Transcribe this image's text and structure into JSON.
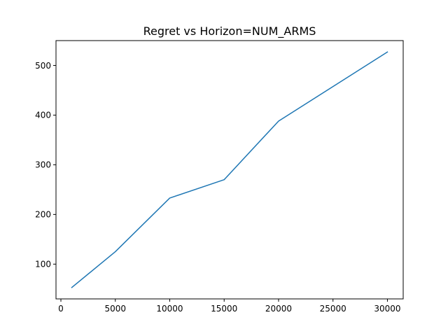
{
  "chart_data": {
    "type": "line",
    "title": "Regret vs Horizon=NUM_ARMS",
    "xlabel": "",
    "ylabel": "",
    "xlim": [
      -450,
      31450
    ],
    "ylim": [
      30,
      550
    ],
    "xticks": [
      0,
      5000,
      10000,
      15000,
      20000,
      25000,
      30000
    ],
    "yticks": [
      100,
      200,
      300,
      400,
      500
    ],
    "grid": false,
    "series": [
      {
        "color": "#1f77b4",
        "x": [
          1000,
          5000,
          10000,
          15000,
          20000,
          30000
        ],
        "y": [
          53,
          125,
          233,
          270,
          388,
          527
        ]
      }
    ]
  }
}
